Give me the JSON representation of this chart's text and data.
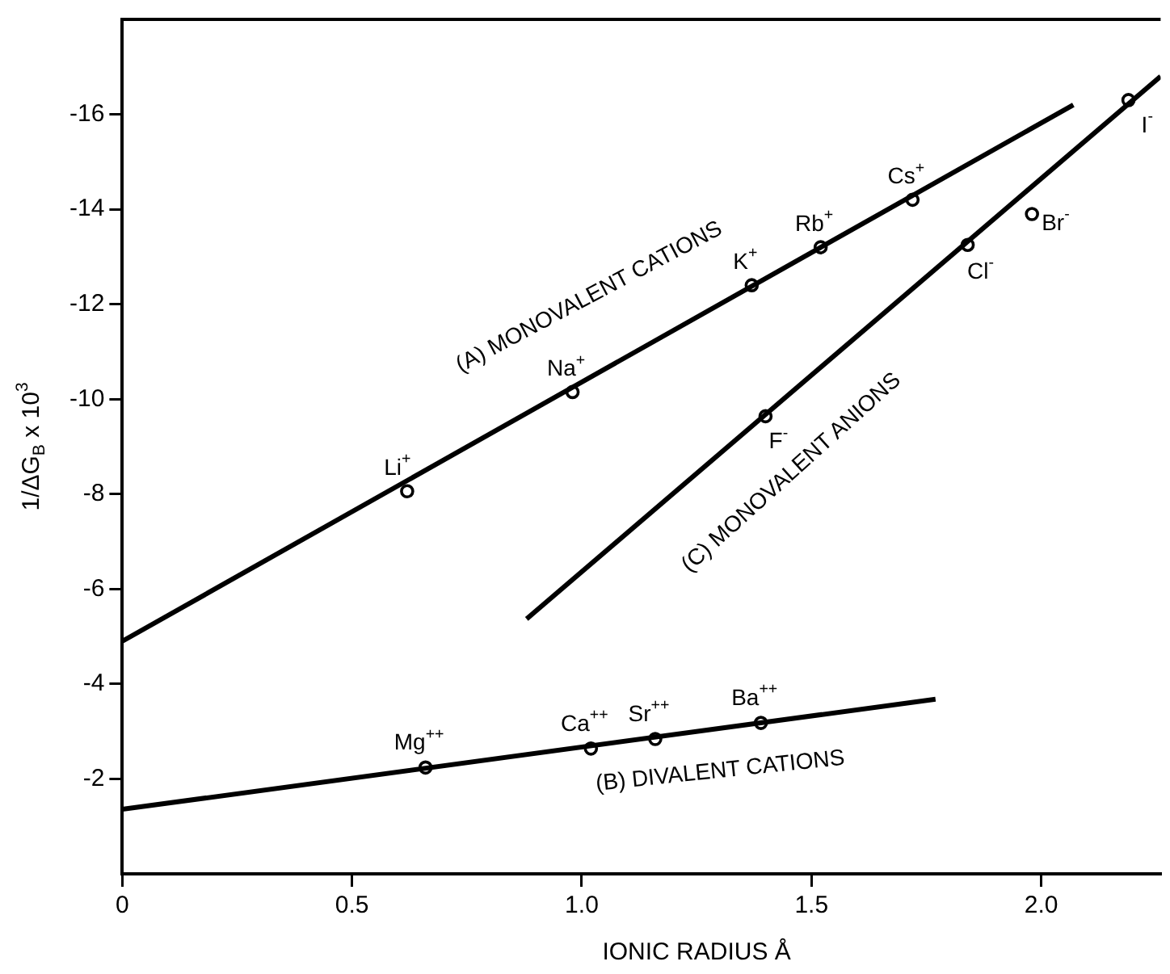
{
  "chart_data": {
    "type": "scatter",
    "xlabel": "IONIC RADIUS Å",
    "ylabel": "1/ΔG$_{B}$ x 10$^{3}$",
    "xlim": [
      0,
      2.26
    ],
    "xticks": [
      0,
      0.5,
      {
        "value": 1,
        "label": "1.0"
      },
      1.5,
      {
        "value": 2,
        "label": "2.0"
      }
    ],
    "ylim": [
      0,
      -18
    ],
    "yticks": [
      -2,
      -4,
      -6,
      -8,
      -10,
      -12,
      -14,
      -16
    ],
    "grid": false,
    "legend": false,
    "marker": "circle",
    "series": [
      {
        "type": "line",
        "color": "#000000",
        "marker": "none",
        "x": [
          0,
          2.07
        ],
        "values": [
          -4.9,
          -16.2
        ]
      },
      {
        "type": "line",
        "color": "#000000",
        "marker": "none",
        "x": [
          0,
          1.77
        ],
        "values": [
          -1.36,
          -3.68
        ]
      },
      {
        "type": "line",
        "color": "#000000",
        "marker": "none",
        "x": [
          0.88,
          2.26
        ],
        "values": [
          -5.37,
          -16.8
        ]
      },
      {
        "color": "#000000",
        "x": [
          0.62,
          0.98,
          1.37,
          1.52,
          1.72
        ],
        "values": [
          -8.06,
          -10.15,
          -12.4,
          -13.2,
          -14.2
        ]
      },
      {
        "color": "#000000",
        "x": [
          0.66,
          1.02,
          1.16,
          1.39
        ],
        "values": [
          -2.24,
          -2.64,
          -2.84,
          -3.18
        ]
      },
      {
        "color": "#000000",
        "x": [
          1.4,
          1.84,
          1.98,
          2.19
        ],
        "values": [
          -9.64,
          -13.25,
          -13.9,
          -16.3
        ]
      }
    ],
    "annotations": [
      {
        "text": "Li$^{+}$",
        "x": 0.62,
        "y": -8.06
      },
      {
        "text": "Na$^{+}$",
        "x": 0.98,
        "y": -10.15
      },
      {
        "text": "K$^{+}$",
        "x": 1.37,
        "y": -12.4
      },
      {
        "text": "Rb$^{+}$",
        "x": 1.52,
        "y": -13.2
      },
      {
        "text": "Cs$^{+}$",
        "x": 1.72,
        "y": -14.2
      },
      {
        "text": "Mg$^{++}$",
        "x": 0.66,
        "y": -2.24
      },
      {
        "text": "Ca$^{++}$",
        "x": 1.02,
        "y": -2.64
      },
      {
        "text": "Sr$^{++}$",
        "x": 1.16,
        "y": -2.84
      },
      {
        "text": "Ba$^{++}$",
        "x": 1.39,
        "y": -3.18
      },
      {
        "text": "F$^{-}$",
        "x": 1.4,
        "y": -9.64
      },
      {
        "text": "Cl$^{-}$",
        "x": 1.84,
        "y": -13.25
      },
      {
        "text": "Br$^{-}$",
        "x": 1.98,
        "y": -13.9
      },
      {
        "text": "I$^{-}$",
        "x": 2.19,
        "y": -16.3
      },
      "(A) MONOVALENT CATIONS",
      "(B) DIVALENT CATIONS",
      "(C) MONOVALENT ANIONS"
    ]
  }
}
